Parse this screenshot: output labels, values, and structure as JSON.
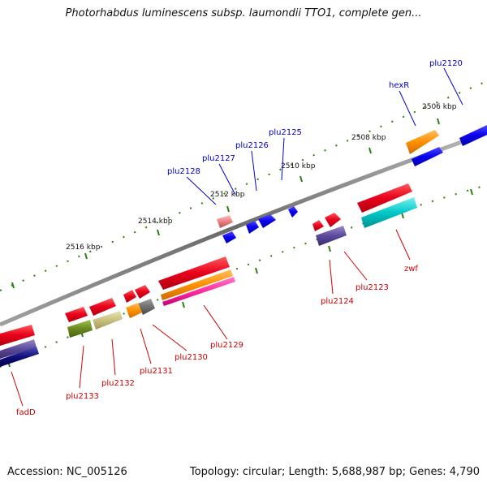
{
  "header": {
    "title": "Photorhabdus luminescens subsp. laumondii TTO1, complete gen..."
  },
  "footer": {
    "accession": "Accession: NC_005126",
    "summary": "Topology: circular; Length: 5,688,987 bp; Genes: 4,790"
  },
  "scale": {
    "labels": [
      "2506 kbp",
      "2508 kbp",
      "2510 kbp",
      "2512 kbp",
      "2514 kbp",
      "2516 kbp"
    ]
  },
  "genes_forward": [
    "plu2120",
    "hexR",
    "plu2125",
    "plu2126",
    "plu2127",
    "plu2128"
  ],
  "genes_reverse": [
    "fadD",
    "plu2133",
    "plu2132",
    "plu2131",
    "plu2130",
    "plu2129",
    "plu2124",
    "plu2123",
    "zwf"
  ],
  "colors": {
    "backbone": "#808080",
    "tick": "#2e7d12",
    "label_forward": "#0000c8",
    "label_reverse": "#d00000",
    "red": "#e8001a",
    "blue": "#0a00ee",
    "orange": "#ff9000",
    "cyan": "#00c8c8",
    "magenta": "#ff2aa0",
    "slate": "#5a4a9a",
    "navy": "#10107a",
    "olive": "#6a8a20",
    "khaki": "#c8c080",
    "pink": "#e88080",
    "gray": "#707070"
  }
}
